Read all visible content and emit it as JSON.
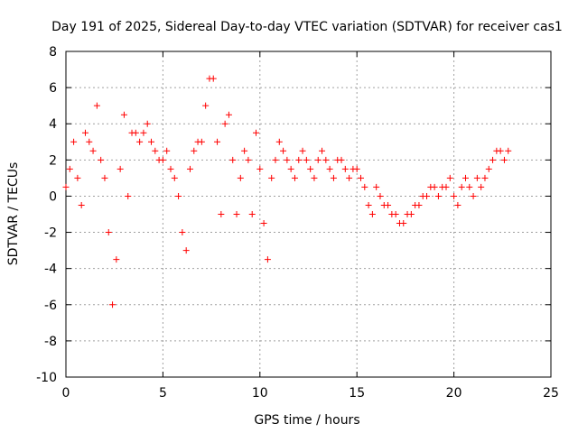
{
  "chart_data": {
    "type": "scatter",
    "title": "Day 191 of 2025, Sidereal Day-to-day VTEC variation (SDTVAR) for receiver cas1",
    "xlabel": "GPS time / hours",
    "ylabel": "SDTVAR / TECUs",
    "xlim": [
      0,
      25
    ],
    "ylim": [
      -10,
      8
    ],
    "xticks": [
      "0",
      "5",
      "10",
      "15",
      "20",
      "25"
    ],
    "yticks": [
      "8",
      "6",
      "4",
      "2",
      "0",
      "-2",
      "-4",
      "-6",
      "-8",
      "-10"
    ],
    "grid": true,
    "marker": "+",
    "color": "#ff0000",
    "series": [
      {
        "name": "SDTVAR",
        "x": [
          0.0,
          0.2,
          0.4,
          0.6,
          0.8,
          1.0,
          1.2,
          1.4,
          1.6,
          1.8,
          2.0,
          2.2,
          2.4,
          2.6,
          2.8,
          3.0,
          3.2,
          3.4,
          3.6,
          3.8,
          4.0,
          4.2,
          4.4,
          4.6,
          4.8,
          5.0,
          5.2,
          5.4,
          5.6,
          5.8,
          6.0,
          6.2,
          6.4,
          6.6,
          6.8,
          7.0,
          7.2,
          7.4,
          7.6,
          7.8,
          8.0,
          8.2,
          8.4,
          8.6,
          8.8,
          9.0,
          9.2,
          9.4,
          9.6,
          9.8,
          10.0,
          10.2,
          10.4,
          10.6,
          10.8,
          11.0,
          11.2,
          11.4,
          11.6,
          11.8,
          12.0,
          12.2,
          12.4,
          12.6,
          12.8,
          13.0,
          13.2,
          13.4,
          13.6,
          13.8,
          14.0,
          14.2,
          14.4,
          14.6,
          14.8,
          15.0,
          15.2,
          15.4,
          15.6,
          15.8,
          16.0,
          16.2,
          16.4,
          16.6,
          16.8,
          17.0,
          17.2,
          17.4,
          17.6,
          17.8,
          18.0,
          18.2,
          18.4,
          18.6,
          18.8,
          19.0,
          19.2,
          19.4,
          19.6,
          19.8,
          20.0,
          20.2,
          20.4,
          20.6,
          20.8,
          21.0,
          21.2,
          21.4,
          21.6,
          21.8,
          22.0,
          22.2,
          22.4,
          22.6,
          22.8
        ],
        "y": [
          0.5,
          1.5,
          3.0,
          1.0,
          -0.5,
          3.5,
          3.0,
          2.5,
          5.0,
          2.0,
          1.0,
          -2.0,
          -6.0,
          -3.5,
          1.5,
          4.5,
          0.0,
          3.5,
          3.5,
          3.0,
          3.5,
          4.0,
          3.0,
          2.5,
          2.0,
          2.0,
          2.5,
          1.5,
          1.0,
          0.0,
          -2.0,
          -3.0,
          1.5,
          2.5,
          3.0,
          3.0,
          5.0,
          6.5,
          6.5,
          3.0,
          -1.0,
          4.0,
          4.5,
          2.0,
          -1.0,
          1.0,
          2.5,
          2.0,
          -1.0,
          3.5,
          1.5,
          -1.5,
          -3.5,
          1.0,
          2.0,
          3.0,
          2.5,
          2.0,
          1.5,
          1.0,
          2.0,
          2.5,
          2.0,
          1.5,
          1.0,
          2.0,
          2.5,
          2.0,
          1.5,
          1.0,
          2.0,
          2.0,
          1.5,
          1.0,
          1.5,
          1.5,
          1.0,
          0.5,
          -0.5,
          -1.0,
          0.5,
          0.0,
          -0.5,
          -0.5,
          -1.0,
          -1.0,
          -1.5,
          -1.5,
          -1.0,
          -1.0,
          -0.5,
          -0.5,
          0.0,
          0.0,
          0.5,
          0.5,
          0.0,
          0.5,
          0.5,
          1.0,
          0.0,
          -0.5,
          0.5,
          1.0,
          0.5,
          0.0,
          1.0,
          0.5,
          1.0,
          1.5,
          2.0,
          2.5,
          2.5,
          2.0,
          2.5
        ]
      }
    ]
  }
}
